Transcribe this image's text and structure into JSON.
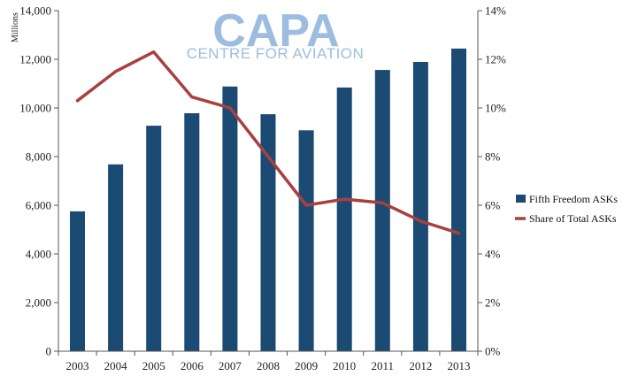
{
  "logo": {
    "name": "CAPA",
    "tagline": "CENTRE FOR AVIATION"
  },
  "colors": {
    "bar": "#1b4a72",
    "line": "#a8403f",
    "logo": "#9dbde0",
    "axis": "#555555"
  },
  "chart_data": {
    "type": "bar",
    "categories": [
      "2003",
      "2004",
      "2005",
      "2006",
      "2007",
      "2008",
      "2009",
      "2010",
      "2011",
      "2012",
      "2013"
    ],
    "series": [
      {
        "name": "Fifth Freedom ASKs",
        "type": "bar",
        "axis": "left",
        "values": [
          5750,
          7680,
          9270,
          9780,
          10880,
          9740,
          9080,
          10840,
          11560,
          11890,
          12440
        ]
      },
      {
        "name": "Share of Total ASKs",
        "type": "line",
        "axis": "right",
        "values": [
          10.3,
          11.5,
          12.3,
          10.45,
          10.0,
          8.0,
          6.0,
          6.25,
          6.1,
          5.35,
          4.85
        ]
      }
    ],
    "y_left": {
      "label": "Millions",
      "ylim": [
        0,
        14000
      ],
      "ticks": [
        0,
        2000,
        4000,
        6000,
        8000,
        10000,
        12000,
        14000
      ],
      "tick_labels": [
        "0",
        "2,000",
        "4,000",
        "6,000",
        "8,000",
        "10,000",
        "12,000",
        "14,000"
      ]
    },
    "y_right": {
      "ylim": [
        0,
        14
      ],
      "ticks": [
        0,
        2,
        4,
        6,
        8,
        10,
        12,
        14
      ],
      "tick_labels": [
        "0%",
        "2%",
        "4%",
        "6%",
        "8%",
        "10%",
        "12%",
        "14%"
      ]
    },
    "legend_position": "right"
  }
}
